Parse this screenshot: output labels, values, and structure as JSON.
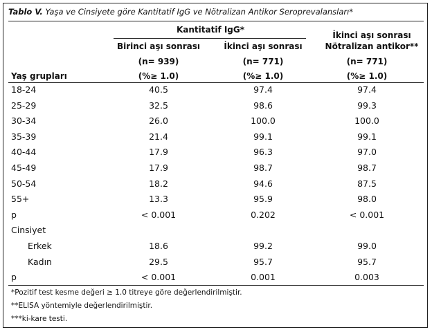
{
  "title": {
    "prefix": "Tablo V.",
    "text": "Yaşa ve Cinsiyete göre Kantitatif IgG ve Nötralizan Antikor Seroprevalansları*"
  },
  "header": {
    "group_top": "Kantitatif IgG*",
    "first_col": "Yaş grupları",
    "col2": {
      "l1": "Birinci aşı sonrası",
      "l2": "(n= 939)",
      "l3": "(%≥ 1.0)"
    },
    "col3": {
      "l1": "İkinci aşı sonrası",
      "l2": "(n= 771)",
      "l3": "(%≥ 1.0)"
    },
    "col4": {
      "l1": "İkinci aşı sonrası",
      "l1b": "Nötralizan antikor**",
      "l2": "(n= 771)",
      "l3": "(%≥ 1.0)"
    }
  },
  "rows": [
    {
      "label": "18-24",
      "v": [
        "40.5",
        "97.4",
        "97.4"
      ]
    },
    {
      "label": "25-29",
      "v": [
        "32.5",
        "98.6",
        "99.3"
      ]
    },
    {
      "label": "30-34",
      "v": [
        "26.0",
        "100.0",
        "100.0"
      ]
    },
    {
      "label": "35-39",
      "v": [
        "21.4",
        "99.1",
        "99.1"
      ]
    },
    {
      "label": "40-44",
      "v": [
        "17.9",
        "96.3",
        "97.0"
      ]
    },
    {
      "label": "45-49",
      "v": [
        "17.9",
        "98.7",
        "98.7"
      ]
    },
    {
      "label": "50-54",
      "v": [
        "18.2",
        "94.6",
        "87.5"
      ]
    },
    {
      "label": "55+",
      "v": [
        "13.3",
        "95.9",
        "98.0"
      ]
    },
    {
      "label": "p",
      "v": [
        "< 0.001",
        "0.202",
        "< 0.001"
      ]
    },
    {
      "label": "Cinsiyet",
      "v": [
        "",
        "",
        ""
      ]
    },
    {
      "label": "Erkek",
      "v": [
        "18.6",
        "99.2",
        "99.0"
      ]
    },
    {
      "label": "Kadın",
      "v": [
        "29.5",
        "95.7",
        "95.7"
      ]
    },
    {
      "label": "p",
      "v": [
        "< 0.001",
        "0.001",
        "0.003"
      ]
    }
  ],
  "footnotes": [
    "*Pozitif test kesme değeri ≥ 1.0 titreye göre değerlendirilmiştir.",
    "**ELISA yöntemiyle değerlendirilmiştir.",
    "***ki-kare testi."
  ]
}
